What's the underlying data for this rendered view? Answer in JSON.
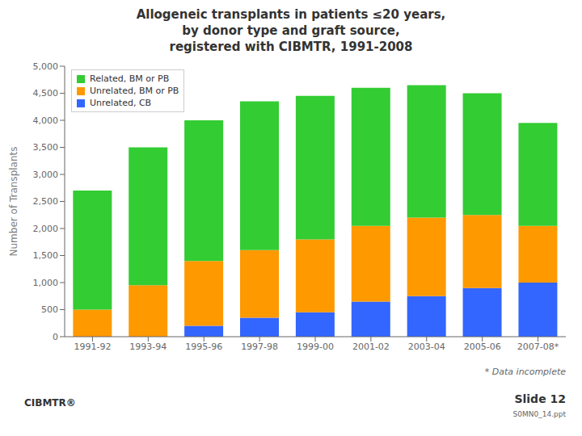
{
  "chart_data": {
    "type": "bar",
    "title": "Allogeneic transplants in patients ≤20 years,\nby donor type and graft source,\nregistered with CIBMTR, 1991-2008",
    "categories": [
      "1991-92",
      "1993-94",
      "1995-96",
      "1997-98",
      "1999-00",
      "2001-02",
      "2003-04",
      "2005-06",
      "2007-08*"
    ],
    "series": [
      {
        "name": "Related, BM or PB",
        "color": "#33cc33",
        "values": [
          2200,
          2550,
          2600,
          2750,
          2650,
          2550,
          2450,
          2250,
          1900
        ]
      },
      {
        "name": "Unrelated, BM or PB",
        "color": "#ff9900",
        "values": [
          500,
          950,
          1200,
          1250,
          1350,
          1400,
          1450,
          1350,
          1050
        ]
      },
      {
        "name": "Unrelated, CB",
        "color": "#3366ff",
        "values": [
          0,
          0,
          200,
          350,
          450,
          650,
          750,
          900,
          1000
        ]
      }
    ],
    "ylabel": "Number of Transplants",
    "ylim": [
      0,
      5000
    ],
    "yticks": [
      0,
      500,
      {
        "value": 1000,
        "label": "1,000"
      },
      {
        "value": 1500,
        "label": "1,500"
      },
      {
        "value": 2000,
        "label": "2,000"
      },
      {
        "value": 2500,
        "label": "2,500"
      },
      {
        "value": 3000,
        "label": "3,000"
      },
      {
        "value": 3500,
        "label": "3,500"
      },
      {
        "value": 4000,
        "label": "4,000"
      },
      {
        "value": 4500,
        "label": "4,500"
      },
      {
        "value": 5000,
        "label": "5,000"
      }
    ],
    "stacked": true,
    "legend": "upper left",
    "grid": false,
    "annotations": [
      "* Data incomplete",
      "Slide 12",
      "S0MN0_14.ppt",
      "CIBMTR®"
    ]
  }
}
